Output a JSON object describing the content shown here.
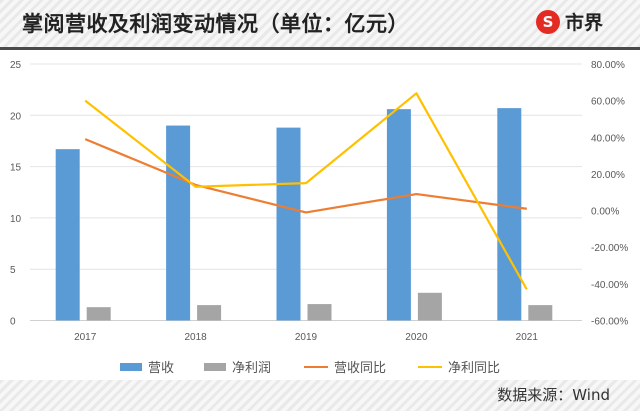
{
  "header": {
    "title": "掌阅营收及利润变动情况（单位：亿元）",
    "logo_text": "市界",
    "logo_icon": "S"
  },
  "footer": {
    "source": "数据来源：Wind"
  },
  "legend": [
    {
      "label": "营收",
      "color": "#5b9bd5",
      "kind": "bar"
    },
    {
      "label": "净利润",
      "color": "#a5a5a5",
      "kind": "bar"
    },
    {
      "label": "营收同比",
      "color": "#ed7d31",
      "kind": "line"
    },
    {
      "label": "净利同比",
      "color": "#ffc000",
      "kind": "line"
    }
  ],
  "chart_data": {
    "type": "bar+line",
    "title": "掌阅营收及利润变动情况（单位：亿元）",
    "categories": [
      "2017",
      "2018",
      "2019",
      "2020",
      "2021"
    ],
    "series": [
      {
        "name": "营收",
        "type": "bar",
        "axis": "left",
        "color": "#5b9bd5",
        "values": [
          16.7,
          19.0,
          18.8,
          20.6,
          20.7
        ]
      },
      {
        "name": "净利润",
        "type": "bar",
        "axis": "left",
        "color": "#a5a5a5",
        "values": [
          1.3,
          1.5,
          1.6,
          2.7,
          1.5
        ]
      },
      {
        "name": "营收同比",
        "type": "line",
        "axis": "right",
        "color": "#ed7d31",
        "values": [
          0.39,
          0.14,
          -0.01,
          0.09,
          0.01
        ]
      },
      {
        "name": "净利同比",
        "type": "line",
        "axis": "right",
        "color": "#ffc000",
        "values": [
          0.6,
          0.13,
          0.15,
          0.64,
          -0.43
        ]
      }
    ],
    "left_axis": {
      "ticks": [
        "0",
        "5",
        "10",
        "15",
        "20",
        "25"
      ],
      "ylim": [
        0,
        25
      ]
    },
    "right_axis": {
      "ticks": [
        "-60.00%",
        "-40.00%",
        "-20.00%",
        "0.00%",
        "20.00%",
        "40.00%",
        "60.00%",
        "80.00%"
      ],
      "ylim": [
        -0.6,
        0.8
      ]
    },
    "xlabel": "",
    "ylabel": "",
    "grid": true,
    "legend_position": "bottom",
    "source": "数据来源：Wind"
  }
}
